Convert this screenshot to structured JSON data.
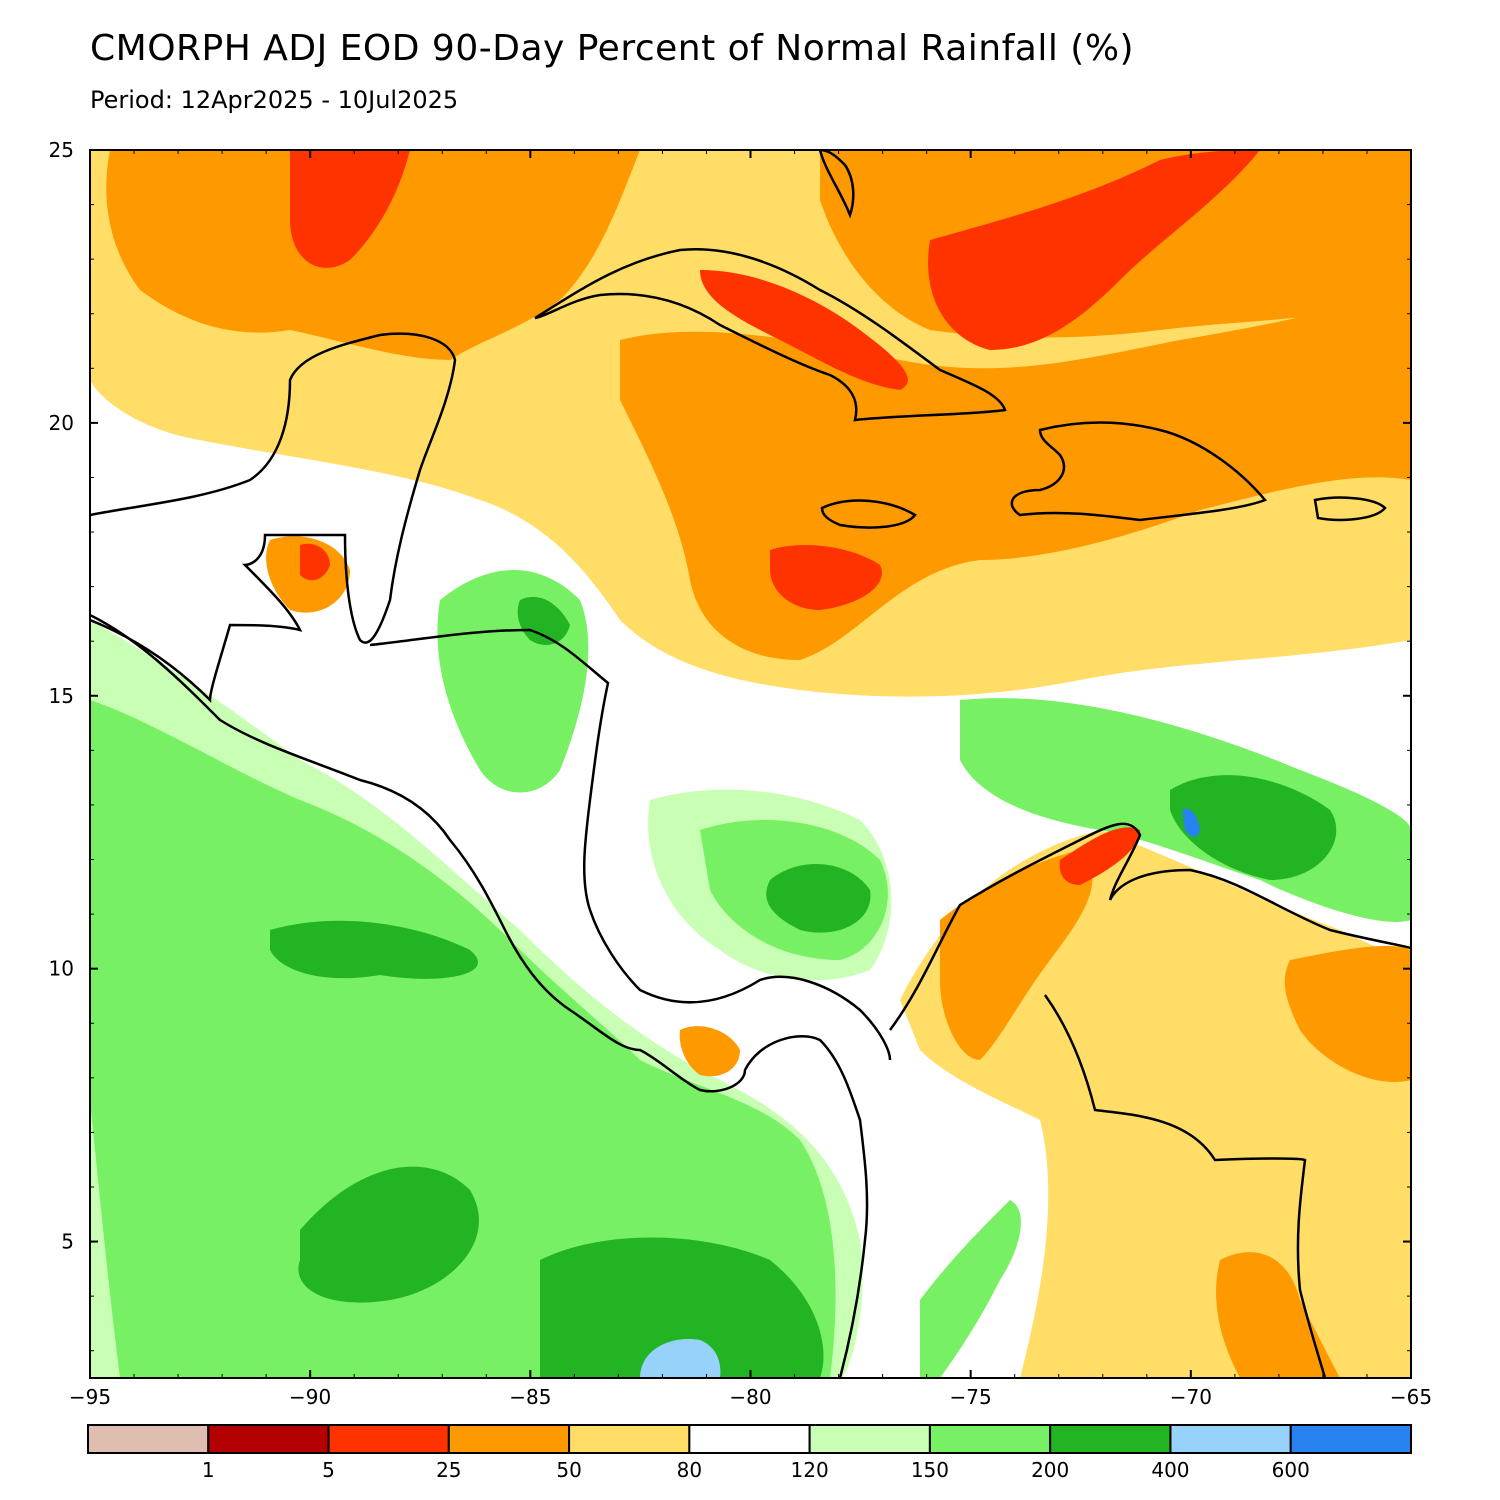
{
  "title": "CMORPH ADJ EOD 90-Day Percent of Normal Rainfall (%)",
  "period": "Period: 12Apr2025 - 10Jul2025",
  "map": {
    "lon_range": [
      -95,
      -65
    ],
    "lat_range": [
      2.5,
      25
    ],
    "lon_ticks": [
      {
        "value": -95,
        "label": "−95"
      },
      {
        "value": -90,
        "label": "−90"
      },
      {
        "value": -85,
        "label": "−85"
      },
      {
        "value": -80,
        "label": "−80"
      },
      {
        "value": -75,
        "label": "−75"
      },
      {
        "value": -70,
        "label": "−70"
      },
      {
        "value": -65,
        "label": "−65"
      }
    ],
    "lat_ticks": [
      {
        "value": 25,
        "label": "25"
      },
      {
        "value": 20,
        "label": "20"
      },
      {
        "value": 15,
        "label": "15"
      },
      {
        "value": 10,
        "label": "10"
      },
      {
        "value": 5,
        "label": "5"
      }
    ]
  },
  "colorbar": {
    "colors": [
      "#e0bdb1",
      "#b30000",
      "#ff3300",
      "#ff9900",
      "#ffdd66",
      "#ffffff",
      "#c8ffb4",
      "#78f064",
      "#22b422",
      "#96d2fa",
      "#2882f0"
    ],
    "labels": [
      "1",
      "5",
      "25",
      "50",
      "80",
      "120",
      "150",
      "200",
      "400",
      "600"
    ]
  }
}
